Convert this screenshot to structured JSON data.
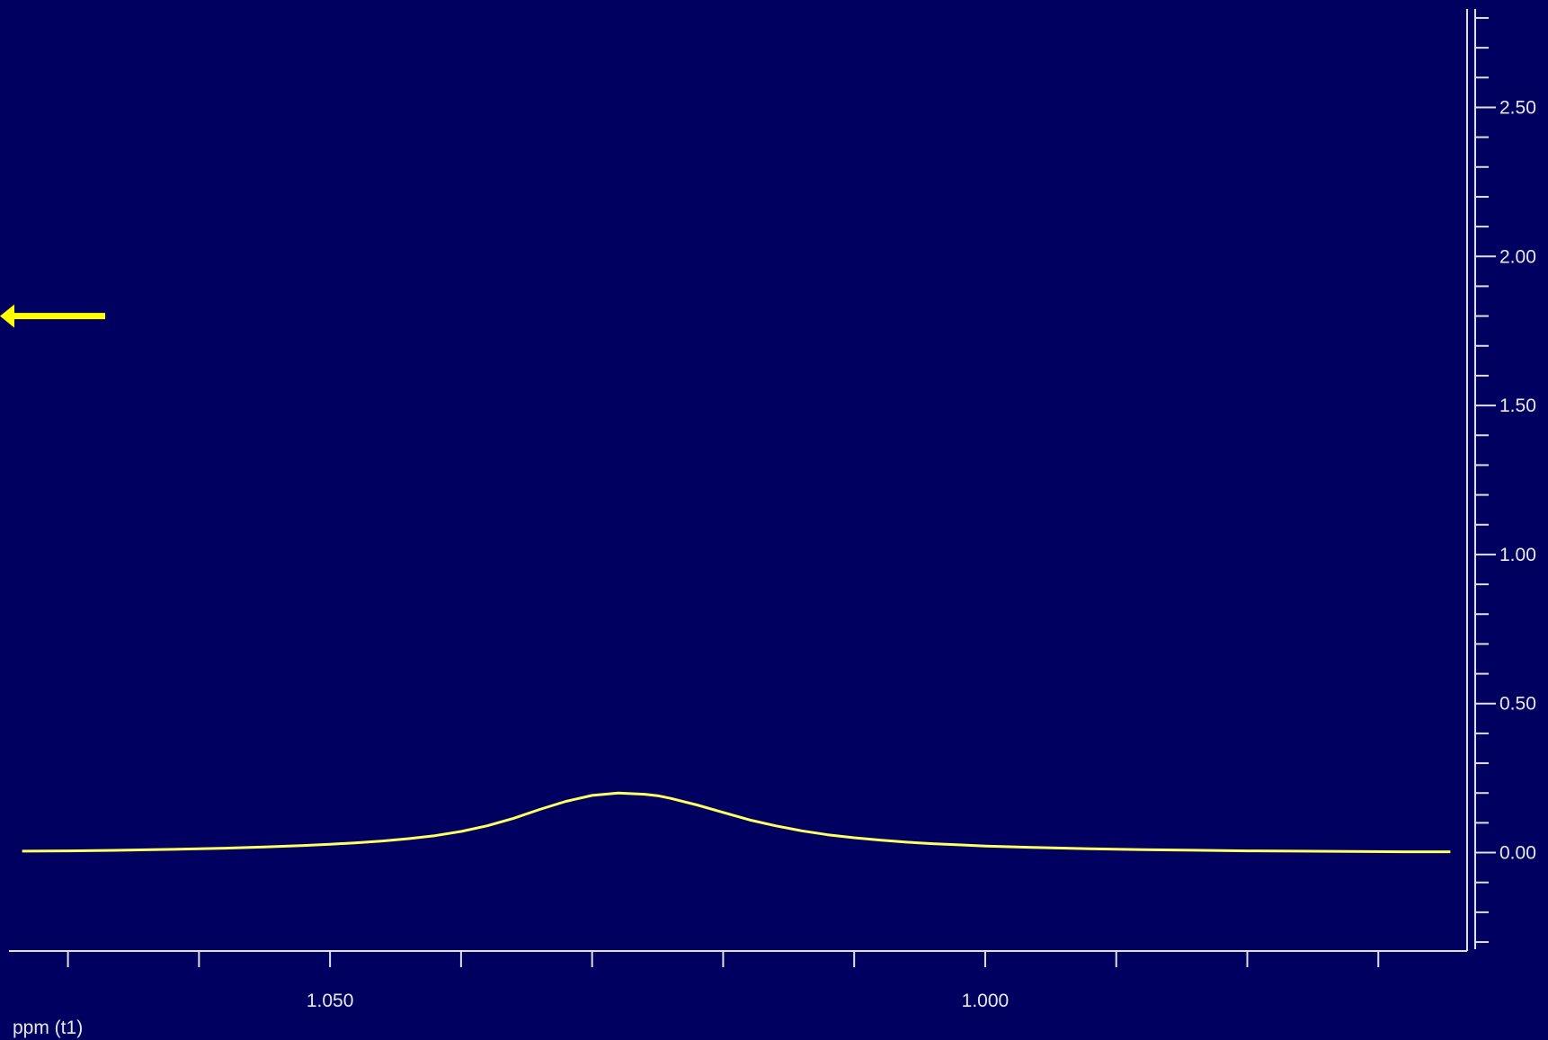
{
  "chart_data": {
    "type": "line",
    "title": "",
    "xlabel": "ppm (t1)",
    "ylabel": "",
    "x_reversed": true,
    "xlim": [
      1.0745,
      0.9635
    ],
    "ylim": [
      -0.33,
      2.83
    ],
    "x_ticks": [
      1.05,
      1.0
    ],
    "x_tick_labels": [
      "1.050",
      "1.000"
    ],
    "x_minor_step": 0.01,
    "y_ticks": [
      0.0,
      0.5,
      1.0,
      1.5,
      2.0,
      2.5
    ],
    "y_tick_labels": [
      "0.00",
      "0.50",
      "1.00",
      "1.50",
      "2.00",
      "2.50"
    ],
    "y_minor_step": 0.1,
    "grid": false,
    "legend": "none",
    "series": [
      {
        "color": "#ffff66",
        "x": [
          1.0735,
          1.07,
          1.066,
          1.062,
          1.058,
          1.055,
          1.052,
          1.05,
          1.048,
          1.046,
          1.044,
          1.042,
          1.04,
          1.038,
          1.036,
          1.034,
          1.032,
          1.03,
          1.028,
          1.026,
          1.025,
          1.024,
          1.022,
          1.02,
          1.018,
          1.016,
          1.014,
          1.012,
          1.01,
          1.008,
          1.006,
          1.004,
          1.002,
          1.0,
          0.996,
          0.992,
          0.988,
          0.984,
          0.98,
          0.976,
          0.972,
          0.968,
          0.9645
        ],
        "y": [
          0.005,
          0.006,
          0.008,
          0.011,
          0.015,
          0.019,
          0.024,
          0.028,
          0.033,
          0.039,
          0.047,
          0.057,
          0.071,
          0.09,
          0.115,
          0.145,
          0.172,
          0.192,
          0.2,
          0.196,
          0.191,
          0.182,
          0.16,
          0.135,
          0.11,
          0.09,
          0.073,
          0.06,
          0.05,
          0.042,
          0.035,
          0.03,
          0.026,
          0.022,
          0.017,
          0.013,
          0.01,
          0.008,
          0.006,
          0.005,
          0.004,
          0.003,
          0.003
        ]
      }
    ],
    "annotations": [
      {
        "type": "arrow",
        "direction": "left",
        "color": "#ffff00",
        "y": 1.8
      }
    ]
  }
}
